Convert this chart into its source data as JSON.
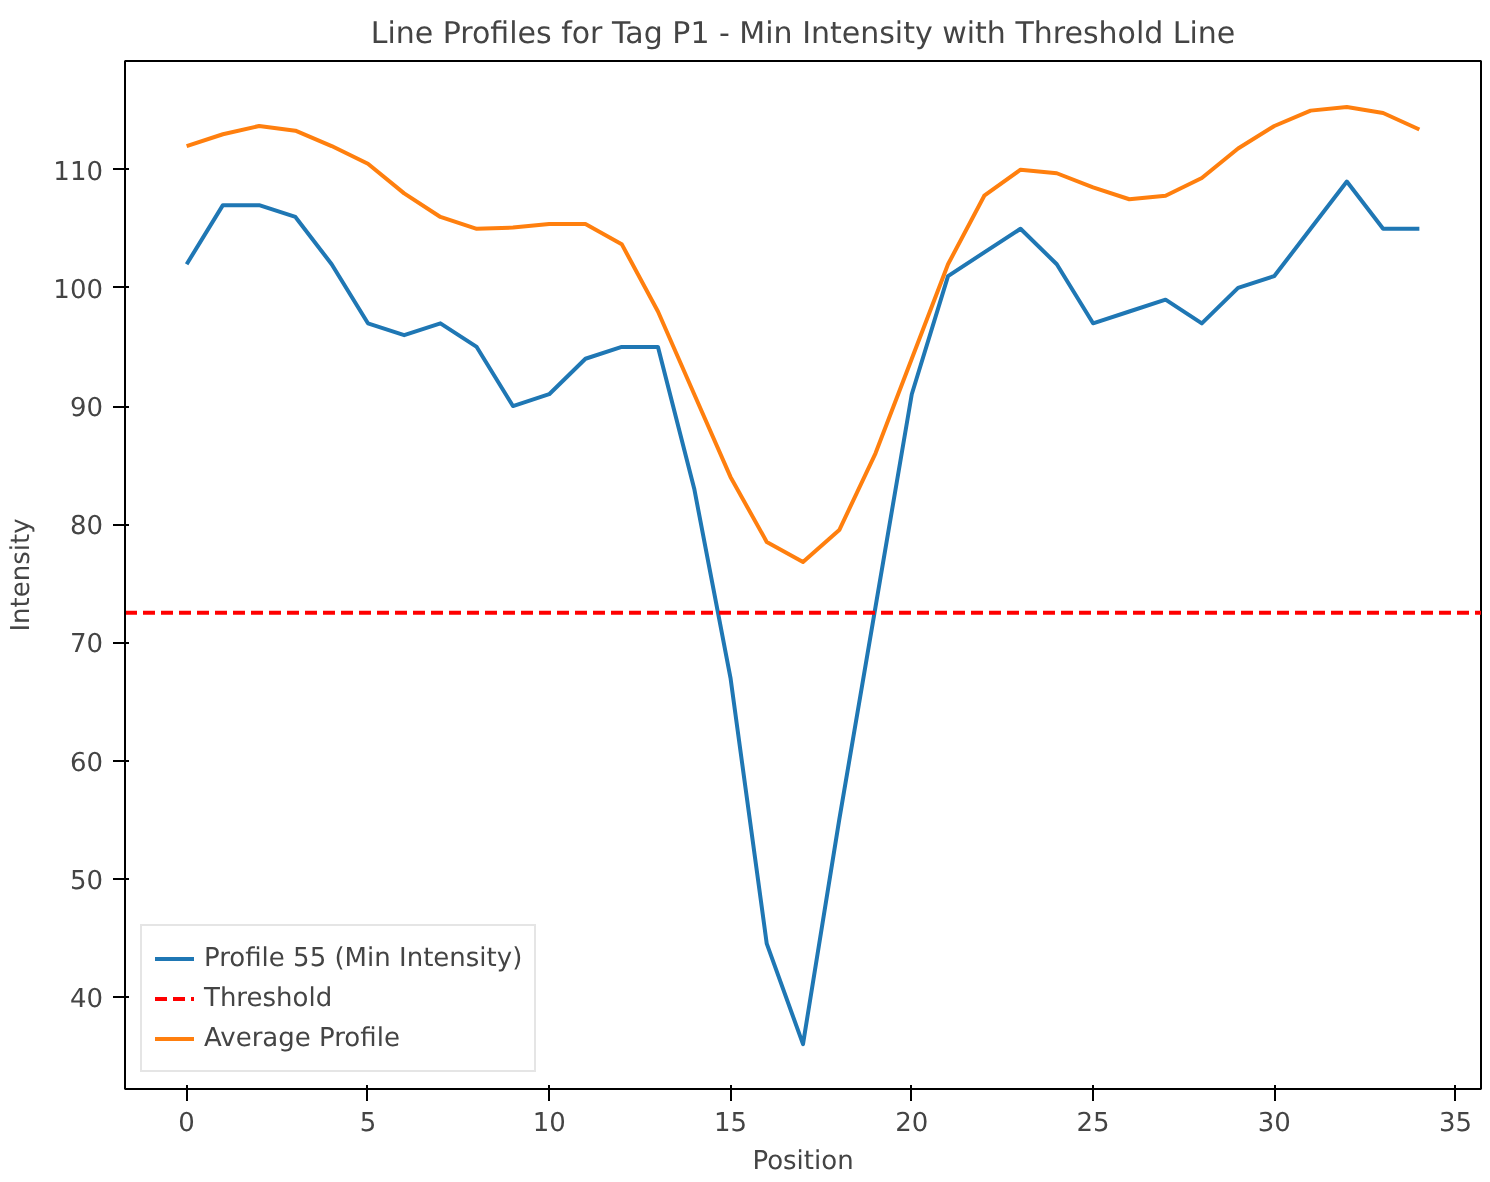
{
  "chart_data": {
    "type": "line",
    "title": "Line Profiles for Tag P1 - Min Intensity with Threshold Line",
    "xlabel": "Position",
    "ylabel": "Intensity",
    "x": [
      0,
      1,
      2,
      3,
      4,
      5,
      6,
      7,
      8,
      9,
      10,
      11,
      12,
      13,
      14,
      15,
      16,
      17,
      18,
      19,
      20,
      21,
      22,
      23,
      24,
      25,
      26,
      27,
      28,
      29,
      30,
      31,
      32,
      33,
      34
    ],
    "series": [
      {
        "name": "Profile 55 (Min Intensity)",
        "color": "#1f77b4",
        "values": [
          102,
          107,
          107,
          106,
          102,
          97,
          96,
          97,
          95,
          90,
          91,
          94,
          95,
          95,
          83,
          67,
          44.5,
          36,
          55,
          73,
          91,
          101,
          103,
          105,
          102,
          97,
          98,
          99,
          97,
          100,
          101,
          105,
          109,
          105,
          105
        ]
      },
      {
        "name": "Average Profile",
        "color": "#ff7f0e",
        "values": [
          112,
          113,
          113.7,
          113.3,
          112,
          110.5,
          108,
          106,
          105,
          105.1,
          105.4,
          105.4,
          103.7,
          98,
          91,
          84,
          78.5,
          76.8,
          79.5,
          86,
          94,
          102,
          107.8,
          110,
          109.7,
          108.5,
          107.5,
          107.8,
          109.3,
          111.8,
          113.7,
          115,
          115.3,
          114.8,
          113.4
        ]
      }
    ],
    "ref_lines": [
      {
        "axis": "y",
        "value": 72.5,
        "label": "Threshold",
        "color": "#ff0000",
        "line_style": "dashed"
      }
    ],
    "xlim": [
      -1.7,
      35.7
    ],
    "ylim": [
      32.2,
      119.2
    ],
    "xticks": [
      0,
      5,
      10,
      15,
      20,
      25,
      30,
      35
    ],
    "yticks": [
      40,
      50,
      60,
      70,
      80,
      90,
      100,
      110
    ],
    "grid": false,
    "legend": "bottom left"
  }
}
